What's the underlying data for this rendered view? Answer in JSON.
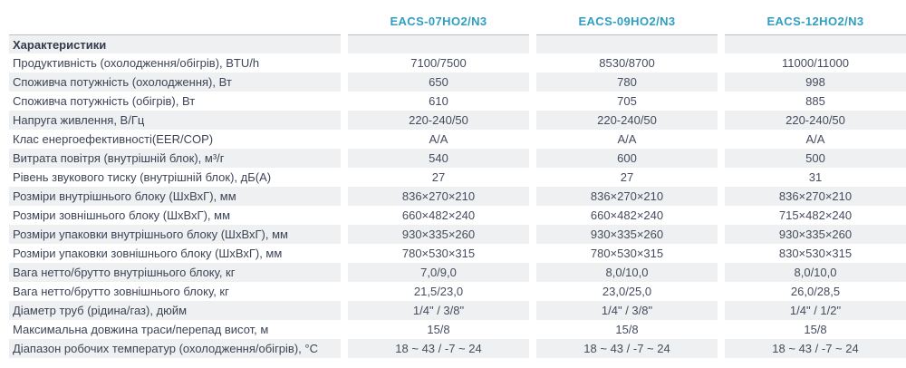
{
  "brand_color": "#2f9ec1",
  "table": {
    "section_title": "Характеристики",
    "models": [
      "EACS-07HO2/N3",
      "EACS-09HO2/N3",
      "EACS-12HO2/N3"
    ],
    "rows": [
      {
        "label": "Продуктивність (охолодження/обігрів), BTU/h",
        "values": [
          "7100/7500",
          "8530/8700",
          "11000/11000"
        ]
      },
      {
        "label": "Споживча потужність (охолодження), Вт",
        "values": [
          "650",
          "780",
          "998"
        ]
      },
      {
        "label": "Споживча потужність (обігрів), Вт",
        "values": [
          "610",
          "705",
          "885"
        ]
      },
      {
        "label": "Напруга живлення, В/Гц",
        "values": [
          "220-240/50",
          "220-240/50",
          "220-240/50"
        ]
      },
      {
        "label": "Клас енергоефективності(EER/COP)",
        "values": [
          "A/A",
          "A/A",
          "A/A"
        ]
      },
      {
        "label": "Витрата повітря (внутрішній блок), м³/г",
        "values": [
          "540",
          "600",
          "500"
        ]
      },
      {
        "label": "Рівень звукового тиску (внутрішній блок), дБ(А)",
        "values": [
          "27",
          "27",
          "31"
        ]
      },
      {
        "label": "Розміри внутрішнього блоку (ШхВхГ), мм",
        "values": [
          "836×270×210",
          "836×270×210",
          "836×270×210"
        ]
      },
      {
        "label": "Розміри зовнішнього блоку (ШхВхГ), мм",
        "values": [
          "660×482×240",
          "660×482×240",
          "715×482×240"
        ]
      },
      {
        "label": "Розміри упаковки внутрішнього блоку (ШхВхГ), мм",
        "values": [
          "930×335×260",
          "930×335×260",
          "930×335×260"
        ]
      },
      {
        "label": "Розміри упаковки зовнішнього блоку (ШхВхГ), мм",
        "values": [
          "780×530×315",
          "780×530×315",
          "830×530×315"
        ]
      },
      {
        "label": "Вага нетто/брутто внутрішнього блоку, кг",
        "values": [
          "7,0/9,0",
          "8,0/10,0",
          "8,0/10,0"
        ]
      },
      {
        "label": "Вага нетто/брутто зовнішнього блоку, кг",
        "values": [
          "21,5/23,0",
          "23,0/25,0",
          "26,0/28,5"
        ]
      },
      {
        "label": "Діаметр труб (рідина/газ), дюйм",
        "values": [
          "1/4\" / 3/8\"",
          "1/4\" / 3/8\"",
          "1/4\" / 1/2\""
        ]
      },
      {
        "label": "Максимальна довжина траси/перепад висот, м",
        "values": [
          "15/8",
          "15/8",
          "15/8"
        ]
      },
      {
        "label": "Діапазон робочих температур (охолодження/обігрів), °С",
        "values": [
          "18 ~ 43 / -7 ~ 24",
          "18 ~ 43 / -7 ~ 24",
          "18 ~ 43 / -7 ~ 24"
        ]
      }
    ]
  }
}
